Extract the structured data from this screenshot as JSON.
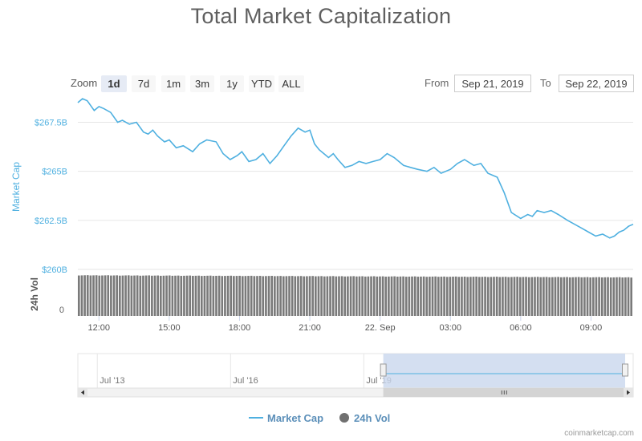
{
  "header": {
    "title": "Total Market Capitalization"
  },
  "zoom": {
    "label": "Zoom",
    "buttons": [
      "1d",
      "7d",
      "1m",
      "3m",
      "1y",
      "YTD",
      "ALL"
    ],
    "active": "1d"
  },
  "range": {
    "from_label": "From",
    "from_value": "Sep 21, 2019",
    "to_label": "To",
    "to_value": "Sep 22, 2019"
  },
  "legend": {
    "market_cap": "Market Cap",
    "volume": "24h Vol"
  },
  "credit": "coinmarketcap.com",
  "colors": {
    "line": "#4fb0e0",
    "axis_text_price": "#4fb0e0",
    "volume_bars": "#7a7a7a",
    "navigator_fill": "#c9d7ee"
  },
  "chart_data": {
    "type": "line",
    "title": "Total Market Capitalization",
    "ylabel": "Market Cap",
    "y_tick_labels": [
      "$260B",
      "$262.5B",
      "$265B",
      "$267.5B"
    ],
    "y_ticks": [
      260,
      262.5,
      265,
      267.5
    ],
    "ylim": [
      260,
      268.5
    ],
    "x_tick_labels": [
      "12:00",
      "15:00",
      "18:00",
      "21:00",
      "22. Sep",
      "03:00",
      "06:00",
      "09:00"
    ],
    "x_ticks_hours": [
      12,
      15,
      18,
      21,
      24,
      27,
      30,
      33
    ],
    "xlim_hours": [
      11.1,
      34.8
    ],
    "series": [
      {
        "name": "Market Cap",
        "unit": "B USD",
        "x_hours": [
          11.1,
          11.3,
          11.5,
          11.8,
          12.0,
          12.2,
          12.5,
          12.8,
          13.0,
          13.3,
          13.6,
          13.9,
          14.1,
          14.3,
          14.5,
          14.8,
          15.0,
          15.3,
          15.6,
          16.0,
          16.3,
          16.6,
          17.0,
          17.3,
          17.6,
          17.9,
          18.1,
          18.4,
          18.7,
          19.0,
          19.3,
          19.6,
          19.9,
          20.2,
          20.5,
          20.8,
          21.0,
          21.2,
          21.4,
          21.6,
          21.8,
          22.0,
          22.2,
          22.5,
          22.8,
          23.1,
          23.4,
          23.7,
          24.0,
          24.3,
          24.6,
          25.0,
          25.3,
          25.6,
          26.0,
          26.3,
          26.6,
          27.0,
          27.3,
          27.6,
          28.0,
          28.3,
          28.6,
          29.0,
          29.3,
          29.6,
          30.0,
          30.3,
          30.5,
          30.7,
          31.0,
          31.3,
          31.6,
          32.0,
          32.3,
          32.6,
          32.9,
          33.2,
          33.5,
          33.8,
          34.0,
          34.2,
          34.4,
          34.6,
          34.8
        ],
        "values": [
          268.5,
          268.7,
          268.6,
          268.1,
          268.3,
          268.2,
          268.0,
          267.5,
          267.6,
          267.4,
          267.5,
          267.0,
          266.9,
          267.1,
          266.8,
          266.5,
          266.6,
          266.2,
          266.3,
          266.0,
          266.4,
          266.6,
          266.5,
          265.9,
          265.6,
          265.8,
          266.0,
          265.5,
          265.6,
          265.9,
          265.4,
          265.8,
          266.3,
          266.8,
          267.2,
          267.0,
          267.1,
          266.4,
          266.1,
          265.9,
          265.7,
          265.9,
          265.6,
          265.2,
          265.3,
          265.5,
          265.4,
          265.5,
          265.6,
          265.9,
          265.7,
          265.3,
          265.2,
          265.1,
          265.0,
          265.2,
          264.9,
          265.1,
          265.4,
          265.6,
          265.3,
          265.4,
          264.9,
          264.7,
          263.9,
          262.9,
          262.6,
          262.8,
          262.7,
          263.0,
          262.9,
          263.0,
          262.8,
          262.5,
          262.3,
          262.1,
          261.9,
          261.7,
          261.8,
          261.6,
          261.7,
          261.9,
          262.0,
          262.2,
          262.3
        ]
      },
      {
        "name": "24h Vol",
        "unit": "relative",
        "x_start_hours": 11.1,
        "x_end_hours": 34.8,
        "bar_count": 190,
        "level_start": 0.97,
        "level_end": 0.92
      }
    ],
    "navigator": {
      "tick_labels": [
        "Jul '13",
        "Jul '16",
        "Jul '19"
      ],
      "selection_fraction": [
        0.55,
        1.0
      ]
    },
    "legend_position": "bottom-center",
    "grid": true
  }
}
